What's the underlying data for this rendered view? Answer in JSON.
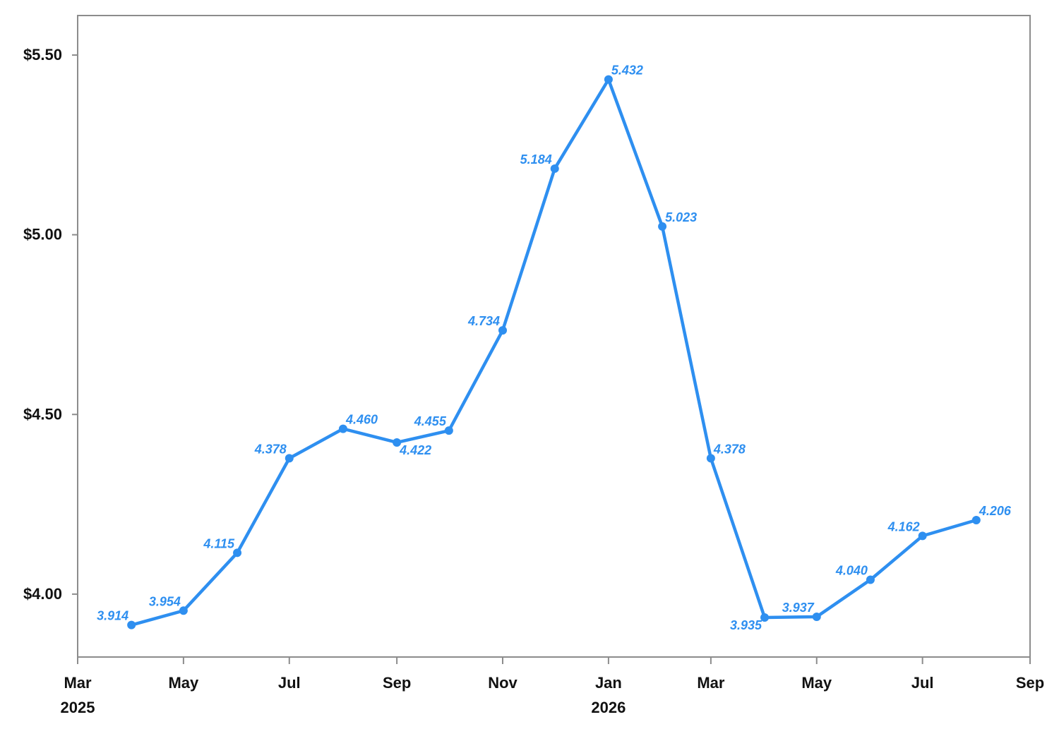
{
  "chart_data": {
    "type": "line",
    "title": "",
    "xlabel": "",
    "ylabel": "",
    "x_axis": {
      "min": "2025-03-01",
      "max": "2026-09-01",
      "ticks": [
        {
          "date": "2025-03-01",
          "label": "Mar",
          "year": "2025"
        },
        {
          "date": "2025-05-01",
          "label": "May",
          "year": ""
        },
        {
          "date": "2025-07-01",
          "label": "Jul",
          "year": ""
        },
        {
          "date": "2025-09-01",
          "label": "Sep",
          "year": ""
        },
        {
          "date": "2025-11-01",
          "label": "Nov",
          "year": ""
        },
        {
          "date": "2026-01-01",
          "label": "Jan",
          "year": "2026"
        },
        {
          "date": "2026-03-01",
          "label": "Mar",
          "year": ""
        },
        {
          "date": "2026-05-01",
          "label": "May",
          "year": ""
        },
        {
          "date": "2026-07-01",
          "label": "Jul",
          "year": ""
        },
        {
          "date": "2026-09-01",
          "label": "Sep",
          "year": ""
        }
      ]
    },
    "y_axis": {
      "min": 3.825,
      "max": 5.61,
      "ticks": [
        {
          "value": 4.0,
          "label": "$4.00"
        },
        {
          "value": 4.5,
          "label": "$4.50"
        },
        {
          "value": 5.0,
          "label": "$5.00"
        },
        {
          "value": 5.5,
          "label": "$5.50"
        }
      ]
    },
    "grid": false,
    "series": [
      {
        "name": "",
        "color": "#2e8ff0",
        "points": [
          {
            "x": "2025-04-01",
            "y": 3.914,
            "label": "3.914",
            "label_pos": "left"
          },
          {
            "x": "2025-05-01",
            "y": 3.954,
            "label": "3.954",
            "label_pos": "left"
          },
          {
            "x": "2025-06-01",
            "y": 4.115,
            "label": "4.115",
            "label_pos": "left"
          },
          {
            "x": "2025-07-01",
            "y": 4.378,
            "label": "4.378",
            "label_pos": "left"
          },
          {
            "x": "2025-08-01",
            "y": 4.46,
            "label": "4.460",
            "label_pos": "right"
          },
          {
            "x": "2025-09-01",
            "y": 4.422,
            "label": "4.422",
            "label_pos": "below-right"
          },
          {
            "x": "2025-10-01",
            "y": 4.455,
            "label": "4.455",
            "label_pos": "left"
          },
          {
            "x": "2025-11-01",
            "y": 4.734,
            "label": "4.734",
            "label_pos": "left"
          },
          {
            "x": "2025-12-01",
            "y": 5.184,
            "label": "5.184",
            "label_pos": "left"
          },
          {
            "x": "2026-01-01",
            "y": 5.432,
            "label": "5.432",
            "label_pos": "right"
          },
          {
            "x": "2026-02-01",
            "y": 5.023,
            "label": "5.023",
            "label_pos": "right"
          },
          {
            "x": "2026-03-01",
            "y": 4.378,
            "label": "4.378",
            "label_pos": "right"
          },
          {
            "x": "2026-04-01",
            "y": 3.935,
            "label": "3.935",
            "label_pos": "below-left"
          },
          {
            "x": "2026-05-01",
            "y": 3.937,
            "label": "3.937",
            "label_pos": "left"
          },
          {
            "x": "2026-06-01",
            "y": 4.04,
            "label": "4.040",
            "label_pos": "left"
          },
          {
            "x": "2026-07-01",
            "y": 4.162,
            "label": "4.162",
            "label_pos": "left"
          },
          {
            "x": "2026-08-01",
            "y": 4.206,
            "label": "4.206",
            "label_pos": "right"
          }
        ]
      }
    ]
  }
}
